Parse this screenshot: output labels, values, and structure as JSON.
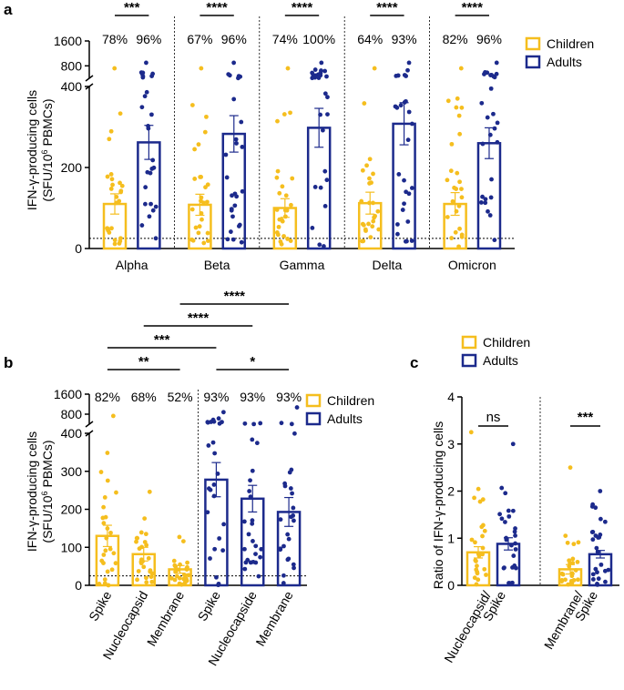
{
  "colors": {
    "children": "#F5BE1E",
    "adults": "#1C2A8C",
    "axis": "#000000"
  },
  "chart_data": [
    {
      "panel": "a",
      "type": "bar",
      "ylabel_line1": "IFN-γ-producing cells",
      "ylabel_line2": "(SFU/10⁶ PBMCs)",
      "ylim_lower": [
        0,
        400
      ],
      "ylim_upper": [
        400,
        1600
      ],
      "yticks_lower": [
        0,
        200,
        400
      ],
      "yticks_upper": [
        800,
        1600
      ],
      "threshold": 25,
      "categories": [
        "Alpha",
        "Beta",
        "Gamma",
        "Delta",
        "Omicron"
      ],
      "legend": [
        "Children",
        "Adults"
      ],
      "series": [
        {
          "name": "Children",
          "values": [
            110,
            108,
            100,
            112,
            110
          ],
          "sem": [
            25,
            26,
            23,
            27,
            28
          ],
          "percent": [
            "78%",
            "67%",
            "74%",
            "64%",
            "82%"
          ]
        },
        {
          "name": "Adults",
          "values": [
            262,
            283,
            298,
            308,
            260
          ],
          "sem": [
            42,
            45,
            48,
            52,
            38
          ],
          "percent": [
            "96%",
            "96%",
            "100%",
            "93%",
            "96%"
          ]
        }
      ],
      "significance": [
        "***",
        "****",
        "****",
        "****",
        "****"
      ]
    },
    {
      "panel": "b",
      "type": "bar",
      "ylabel_line1": "IFN-γ-producing cells",
      "ylabel_line2": "(SFU/10⁶ PBMCs)",
      "ylim_lower": [
        0,
        400
      ],
      "ylim_upper": [
        400,
        1600
      ],
      "yticks_lower": [
        0,
        100,
        200,
        300,
        400
      ],
      "yticks_upper": [
        800,
        1600
      ],
      "threshold": 25,
      "categories": [
        "Spike",
        "Nucleocapsid",
        "Membrane",
        "Spike",
        "Nucleocapside",
        "Membrane"
      ],
      "groups": [
        "Children",
        "Children",
        "Children",
        "Adults",
        "Adults",
        "Adults"
      ],
      "values": [
        130,
        82,
        42,
        278,
        228,
        193
      ],
      "sem": [
        28,
        18,
        10,
        45,
        35,
        38
      ],
      "percent": [
        "82%",
        "68%",
        "52%",
        "93%",
        "93%",
        "93%"
      ],
      "legend": [
        "Children",
        "Adults"
      ],
      "comparisons": [
        {
          "from": 0,
          "to": 2,
          "label": "**"
        },
        {
          "from": 3,
          "to": 5,
          "label": "*"
        },
        {
          "from": 0,
          "to": 3,
          "label": "***"
        },
        {
          "from": 1,
          "to": 4,
          "label": "****"
        },
        {
          "from": 2,
          "to": 5,
          "label": "****"
        }
      ]
    },
    {
      "panel": "c",
      "type": "bar",
      "ylabel": "Ratio of IFN-γ-producing cells",
      "ylim": [
        0,
        4
      ],
      "yticks": [
        0,
        1,
        2,
        3,
        4
      ],
      "categories": [
        "Nucleocapsid/\nSpike",
        "Membrane/\nSpike"
      ],
      "category_labels": [
        [
          "Nucleocapsid/",
          "Spike"
        ],
        [
          "Membrane/",
          "Spike"
        ]
      ],
      "legend": [
        "Children",
        "Adults"
      ],
      "series": [
        {
          "name": "Children",
          "values": [
            0.7,
            0.34
          ],
          "sem": [
            0.12,
            0.1
          ]
        },
        {
          "name": "Adults",
          "values": [
            0.88,
            0.66
          ],
          "sem": [
            0.13,
            0.08
          ]
        }
      ],
      "significance": [
        "ns",
        "***"
      ]
    }
  ]
}
